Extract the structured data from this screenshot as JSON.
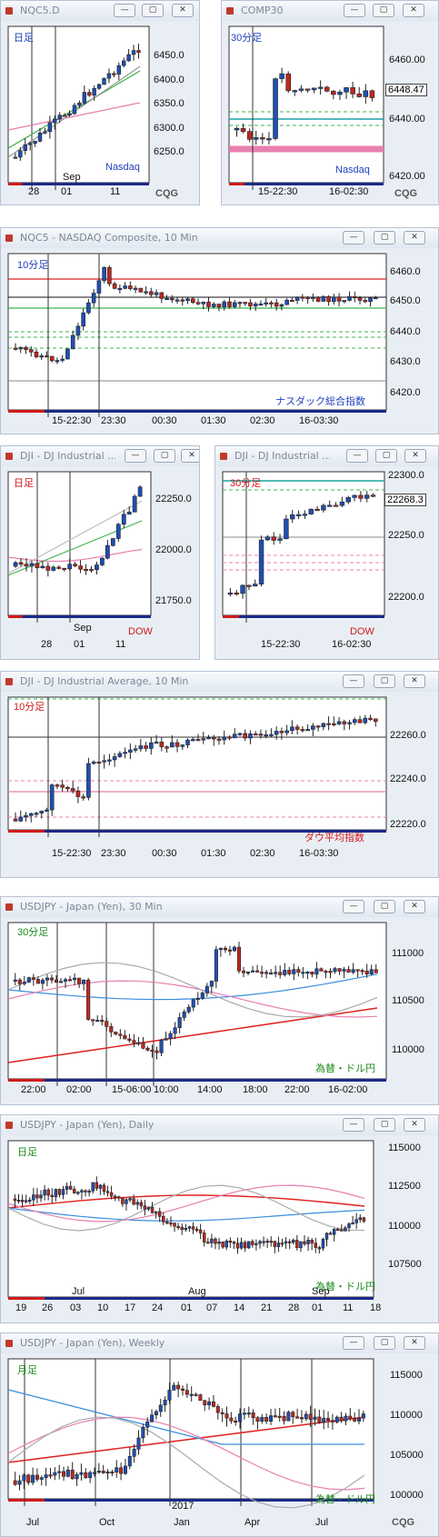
{
  "windows": [
    {
      "id": "w1",
      "title": "NQC5.D",
      "period": "日足",
      "footer": "Nasdaq",
      "yticks": [
        "6450.0",
        "6400.0",
        "6350.0",
        "6300.0",
        "6250.0"
      ],
      "xticks": [
        "28",
        "01",
        "11"
      ],
      "xsub": "Sep",
      "brand": "CQG"
    },
    {
      "id": "w2",
      "title": "COMP30",
      "period": "30分足",
      "footer": "Nasdaq",
      "yticks": [
        "6460.00",
        "6440.00",
        "6420.00"
      ],
      "price": "6448.47",
      "xticks": [
        "15-22:30",
        "16-02:30"
      ],
      "brand": "CQG"
    },
    {
      "id": "w3",
      "title": "NQC5 - NASDAQ Composite, 10 Min",
      "period": "10分足",
      "footer": "ナスダック総合指数",
      "yticks": [
        "6460.0",
        "6450.0",
        "6440.0",
        "6430.0",
        "6420.0"
      ],
      "xticks": [
        "15-22:30",
        "23:30",
        "00:30",
        "01:30",
        "02:30",
        "16-03:30"
      ]
    },
    {
      "id": "w4",
      "title": "DJI - DJ Industrial ...",
      "period": "日足",
      "footer": "DOW",
      "yticks": [
        "22250.0",
        "22000.0",
        "21750.0"
      ],
      "xticks": [
        "28",
        "01",
        "11"
      ],
      "xsub": "Sep"
    },
    {
      "id": "w5",
      "title": "DJI - DJ Industrial ...",
      "period": "30分足",
      "footer": "DOW",
      "yticks": [
        "22300.0",
        "22250.0",
        "22200.0"
      ],
      "price": "22268.3",
      "xticks": [
        "15-22:30",
        "16-02:30"
      ]
    },
    {
      "id": "w6",
      "title": "DJI - DJ Industrial Average, 10 Min",
      "period": "10分足",
      "footer": "ダウ平均指数",
      "yticks": [
        "22260.0",
        "22240.0",
        "22220.0"
      ],
      "xticks": [
        "15-22:30",
        "23:30",
        "00:30",
        "01:30",
        "02:30",
        "16-03:30"
      ]
    },
    {
      "id": "w7",
      "title": "USDJPY - Japan (Yen), 30 Min",
      "period": "30分足",
      "footer": "為替・ドル円",
      "yticks": [
        "111000",
        "110500",
        "110000"
      ],
      "xticks": [
        "22:00",
        "02:00",
        "15-06:00",
        "10:00",
        "14:00",
        "18:00",
        "22:00",
        "16-02:00"
      ]
    },
    {
      "id": "w8",
      "title": "USDJPY - Japan (Yen), Daily",
      "period": "日足",
      "footer": "為替・ドル円",
      "yticks": [
        "115000",
        "112500",
        "110000",
        "107500"
      ],
      "xticks": [
        "19",
        "26",
        "03",
        "10",
        "17",
        "24",
        "01",
        "07",
        "14",
        "21",
        "28",
        "01",
        "11",
        "18"
      ],
      "xsub": [
        "Jul",
        "Aug",
        "Sep"
      ]
    },
    {
      "id": "w9",
      "title": "USDJPY - Japan (Yen), Weekly",
      "period": "月足",
      "footer": "為替・ドル円",
      "yticks": [
        "115000",
        "110000",
        "105000",
        "100000"
      ],
      "xticks": [
        "Jul",
        "Oct",
        "Jan",
        "Apr",
        "Jul"
      ],
      "xsub": "2017",
      "brand": "CQG"
    }
  ],
  "icons": {
    "minimize": "minimize-icon",
    "maximize": "maximize-icon",
    "close": "close-icon",
    "window": "chart-window-icon"
  },
  "colors": {
    "up": "#1f4fb4",
    "down": "#c0281e",
    "ma_pink": "#e87fb0",
    "ma_blue": "#3a8ee0",
    "ma_red": "#e02020",
    "ma_green": "#3cb44b",
    "title_bg": "#e9eef5"
  }
}
